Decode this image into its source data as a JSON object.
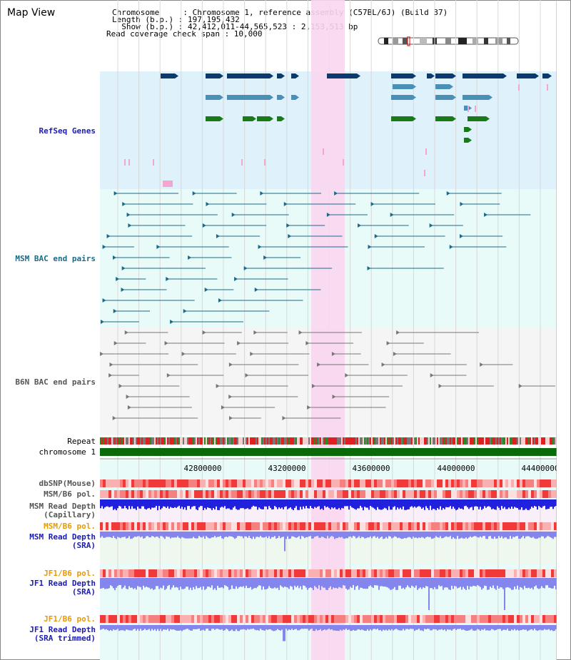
{
  "page": {
    "title": "Map View"
  },
  "header": {
    "chromosome_label": "Chromosome     : Chromosome 1, reference assembly (C57BL/6J) (Build 37)",
    "length_label": "Length (b.p.) : 197,195,432",
    "show_label": "  Show (b.p.) : 42,412,011-44,565,523 : 2,153,513 bp",
    "coverage_label": "Read coverage check span : 10,000"
  },
  "tracks": {
    "refseq": "RefSeq Genes",
    "msm_bac": "MSM BAC end pairs",
    "b6n_bac": "B6N BAC end pairs",
    "repeat": "Repeat",
    "chromosome": "chromosome 1",
    "dbsnp": "dbSNP(Mouse)",
    "msm_b6_pol_1": "MSM/B6 pol.",
    "msm_read_depth_cap_1": "MSM Read Depth",
    "msm_read_depth_cap_2": "(Capillary)",
    "msm_b6_pol_2": "MSM/B6 pol.",
    "msm_read_depth_sra_1": "MSM Read Depth",
    "msm_read_depth_sra_2": "(SRA)",
    "jf1_b6_pol_1": "JF1/B6 pol.",
    "jf1_read_depth_sra_1": "JF1 Read Depth",
    "jf1_read_depth_sra_2": "(SRA)",
    "jf1_b6_pol_2": "JF1/B6 pol.",
    "jf1_read_depth_trim_1": "JF1 Read Depth",
    "jf1_read_depth_trim_2": "(SRA trimmed)"
  },
  "axis": {
    "ticks": [
      "42800000",
      "43200000",
      "43600000",
      "44000000",
      "44400000"
    ]
  },
  "colors": {
    "refseq_bg": "#dff1fb",
    "highlight": "#f9d6f0",
    "gene_dark": "#0b3a6e",
    "gene_mid": "#4a8fb5",
    "gene_green": "#1a7a1a",
    "pink_mark": "#f5a6cf",
    "msm_bac": "#1b6a8a",
    "b6n_bac": "#777777",
    "chromosome_bar": "#0a6a0a",
    "depth_cap": "#2020dd",
    "depth_sra": "#8585ee",
    "pol_red": "#f03a3a",
    "label_blue": "#1c1cb0",
    "label_teal": "#1b6a8a",
    "label_gray": "#555555",
    "label_orange": "#e89a00"
  }
}
